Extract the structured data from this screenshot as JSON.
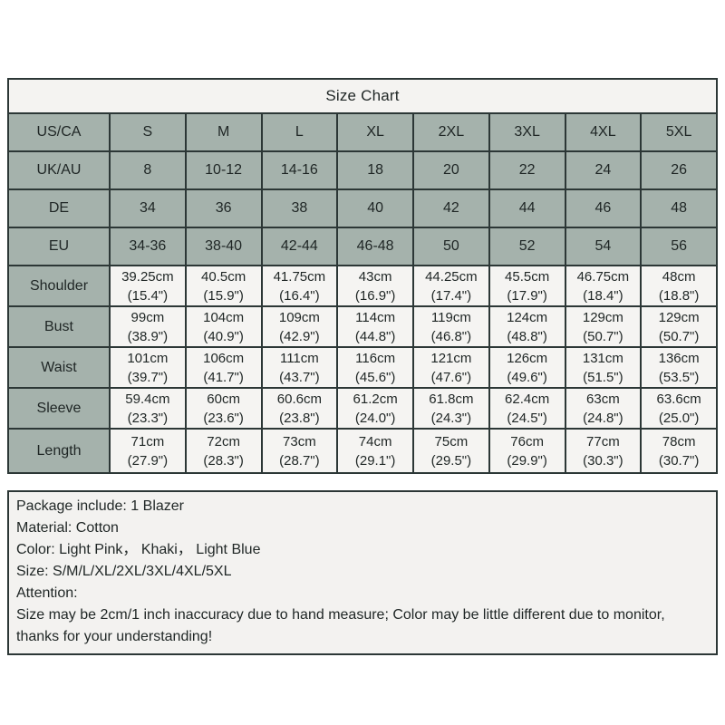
{
  "title": "Size Chart",
  "chart_data": {
    "type": "table",
    "title": "Size Chart",
    "header_column": [
      "US/CA",
      "UK/AU",
      "DE",
      "EU",
      "Shoulder",
      "Bust",
      "Waist",
      "Sleeve",
      "Length"
    ],
    "size_rows": [
      {
        "label": "US/CA",
        "values": [
          "S",
          "M",
          "L",
          "XL",
          "2XL",
          "3XL",
          "4XL",
          "5XL"
        ]
      },
      {
        "label": "UK/AU",
        "values": [
          "8",
          "10-12",
          "14-16",
          "18",
          "20",
          "22",
          "24",
          "26"
        ]
      },
      {
        "label": "DE",
        "values": [
          "34",
          "36",
          "38",
          "40",
          "42",
          "44",
          "46",
          "48"
        ]
      },
      {
        "label": "EU",
        "values": [
          "34-36",
          "38-40",
          "42-44",
          "46-48",
          "50",
          "52",
          "54",
          "56"
        ]
      }
    ],
    "measure_rows": [
      {
        "label": "Shoulder",
        "values": [
          [
            "39.25cm",
            "(15.4\")"
          ],
          [
            "40.5cm",
            "(15.9\")"
          ],
          [
            "41.75cm",
            "(16.4\")"
          ],
          [
            "43cm",
            "(16.9\")"
          ],
          [
            "44.25cm",
            "(17.4\")"
          ],
          [
            "45.5cm",
            "(17.9\")"
          ],
          [
            "46.75cm",
            "(18.4\")"
          ],
          [
            "48cm",
            "(18.8\")"
          ]
        ]
      },
      {
        "label": "Bust",
        "values": [
          [
            "99cm",
            "(38.9\")"
          ],
          [
            "104cm",
            "(40.9\")"
          ],
          [
            "109cm",
            "(42.9\")"
          ],
          [
            "114cm",
            "(44.8\")"
          ],
          [
            "119cm",
            "(46.8\")"
          ],
          [
            "124cm",
            "(48.8\")"
          ],
          [
            "129cm",
            "(50.7\")"
          ],
          [
            "129cm",
            "(50.7\")"
          ]
        ]
      },
      {
        "label": "Waist",
        "values": [
          [
            "101cm",
            "(39.7\")"
          ],
          [
            "106cm",
            "(41.7\")"
          ],
          [
            "111cm",
            "(43.7\")"
          ],
          [
            "116cm",
            "(45.6\")"
          ],
          [
            "121cm",
            "(47.6\")"
          ],
          [
            "126cm",
            "(49.6\")"
          ],
          [
            "131cm",
            "(51.5\")"
          ],
          [
            "136cm",
            "(53.5\")"
          ]
        ]
      },
      {
        "label": "Sleeve",
        "values": [
          [
            "59.4cm",
            "(23.3\")"
          ],
          [
            "60cm",
            "(23.6\")"
          ],
          [
            "60.6cm",
            "(23.8\")"
          ],
          [
            "61.2cm",
            "(24.0\")"
          ],
          [
            "61.8cm",
            "(24.3\")"
          ],
          [
            "62.4cm",
            "(24.5\")"
          ],
          [
            "63cm",
            "(24.8\")"
          ],
          [
            "63.6cm",
            "(25.0\")"
          ]
        ]
      },
      {
        "label": "Length",
        "values": [
          [
            "71cm",
            "(27.9\")"
          ],
          [
            "72cm",
            "(28.3\")"
          ],
          [
            "73cm",
            "(28.7\")"
          ],
          [
            "74cm",
            "(29.1\")"
          ],
          [
            "75cm",
            "(29.5\")"
          ],
          [
            "76cm",
            "(29.9\")"
          ],
          [
            "77cm",
            "(30.3\")"
          ],
          [
            "78cm",
            "(30.7\")"
          ]
        ]
      }
    ]
  },
  "details": {
    "package": "Package include: 1 Blazer",
    "material": "Material: Cotton",
    "color": "Color: Light Pink， Khaki， Light Blue",
    "size": "Size: S/M/L/XL/2XL/3XL/4XL/5XL",
    "attention": "Attention:",
    "note": "Size may be 2cm/1 inch inaccuracy due to hand measure; Color may be little different due to monitor, thanks for your understanding!"
  },
  "colors": {
    "cell_green": "#a5b2ac",
    "cell_light": "#f4f3f1",
    "border": "#2c3736",
    "text": "#1f2625"
  }
}
